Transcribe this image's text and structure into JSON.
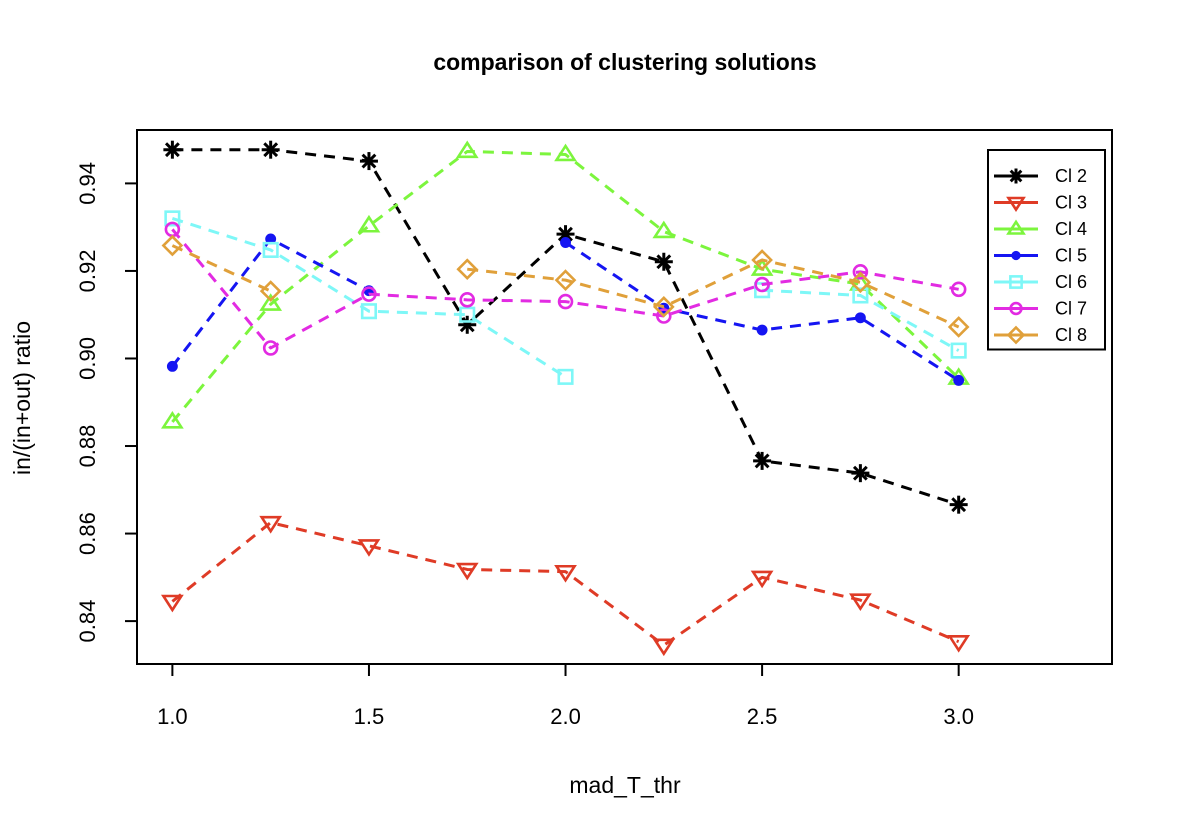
{
  "chart_data": {
    "type": "line",
    "title": "comparison of clustering solutions",
    "xlabel": "mad_T_thr",
    "ylabel": "in/(in+out) ratio",
    "x": [
      1.0,
      1.25,
      1.5,
      1.75,
      2.0,
      2.25,
      2.5,
      2.75,
      3.0
    ],
    "xlim": [
      0.91,
      3.39
    ],
    "ylim": [
      0.8302,
      0.9522
    ],
    "x_ticks": [
      1.0,
      1.5,
      2.0,
      2.5,
      3.0
    ],
    "x_tick_labels": [
      "1.0",
      "1.5",
      "2.0",
      "2.5",
      "3.0"
    ],
    "y_ticks": [
      0.84,
      0.86,
      0.88,
      0.9,
      0.92,
      0.94
    ],
    "y_tick_labels": [
      "0.84",
      "0.86",
      "0.88",
      "0.90",
      "0.92",
      "0.94"
    ],
    "grid": false,
    "legend_position": "top-right",
    "series": [
      {
        "name": "Cl 2",
        "color": "#000000",
        "marker": "asterisk",
        "values": [
          0.9477,
          0.9477,
          0.9451,
          0.9077,
          0.9284,
          0.9221,
          0.8766,
          0.8738,
          0.8666
        ]
      },
      {
        "name": "Cl 3",
        "color": "#DF3B26",
        "marker": "triangle-down",
        "values": [
          0.8445,
          0.8625,
          0.8572,
          0.8518,
          0.8513,
          0.8345,
          0.85,
          0.8448,
          0.8353
        ]
      },
      {
        "name": "Cl 4",
        "color": "#7CF53D",
        "marker": "triangle-up",
        "values": [
          0.8855,
          0.9124,
          0.9303,
          0.9473,
          0.9466,
          0.929,
          0.9204,
          0.917,
          0.8955
        ]
      },
      {
        "name": "Cl 5",
        "color": "#1515F2",
        "marker": "dot",
        "values": [
          0.8982,
          0.9273,
          0.9155,
          null,
          0.9265,
          0.9115,
          0.9065,
          0.9093,
          0.895
        ]
      },
      {
        "name": "Cl 6",
        "color": "#7EF7F7",
        "marker": "square",
        "values": [
          0.932,
          0.9248,
          0.9108,
          0.91,
          0.8958,
          null,
          0.9156,
          0.9144,
          0.9018
        ]
      },
      {
        "name": "Cl 7",
        "color": "#E22BE2",
        "marker": "circle",
        "values": [
          0.9295,
          0.9024,
          0.9147,
          0.9134,
          0.913,
          0.9097,
          0.9169,
          0.9198,
          0.9158
        ]
      },
      {
        "name": "Cl 8",
        "color": "#E0A03A",
        "marker": "diamond",
        "values": [
          0.9258,
          0.9154,
          null,
          0.9204,
          0.9179,
          0.9118,
          0.9225,
          0.9174,
          0.9072
        ]
      }
    ]
  }
}
